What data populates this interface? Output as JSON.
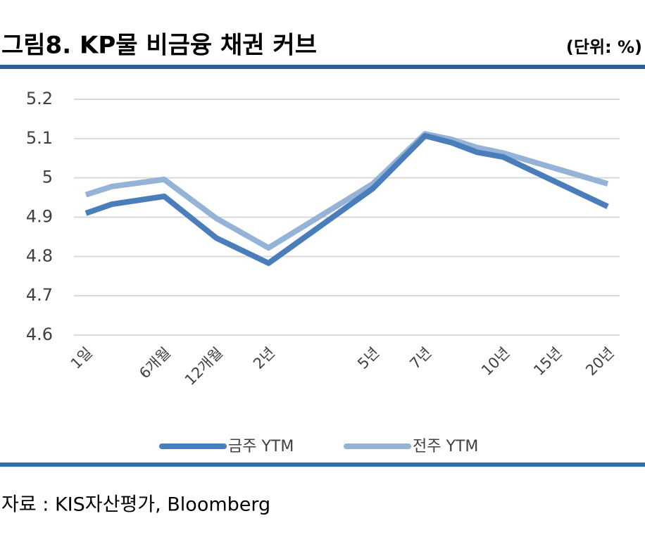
{
  "title": "그림8. KP물 비금융 채권 커브",
  "unit": "(단위: %)",
  "source": "자료 : KIS자산평가, Bloomberg",
  "chart_data": {
    "type": "line",
    "categories": [
      "1일",
      null,
      null,
      "6개월",
      null,
      "12개월",
      null,
      "2년",
      null,
      null,
      null,
      "5년",
      null,
      "7년",
      null,
      null,
      "10년",
      null,
      "15년",
      null,
      "20년"
    ],
    "connect_gaps": true,
    "series": [
      {
        "name": "금주 YTM",
        "color": "#4a7ebb",
        "values": [
          4.91,
          4.933,
          null,
          4.953,
          null,
          4.847,
          null,
          4.783,
          null,
          null,
          null,
          4.973,
          null,
          5.107,
          5.09,
          5.065,
          5.053,
          null,
          4.99,
          null,
          4.927
        ]
      },
      {
        "name": "전주 YTM",
        "color": "#95b3d7",
        "values": [
          4.957,
          4.978,
          null,
          4.996,
          null,
          4.897,
          null,
          4.822,
          null,
          null,
          null,
          4.985,
          null,
          5.112,
          5.098,
          5.077,
          5.063,
          null,
          5.024,
          null,
          4.985
        ]
      }
    ],
    "ylim": [
      4.6,
      5.2
    ],
    "yticks": [
      4.6,
      4.7,
      4.8,
      4.9,
      5,
      5.1,
      5.2
    ],
    "grid": true,
    "legend": "bottom"
  }
}
